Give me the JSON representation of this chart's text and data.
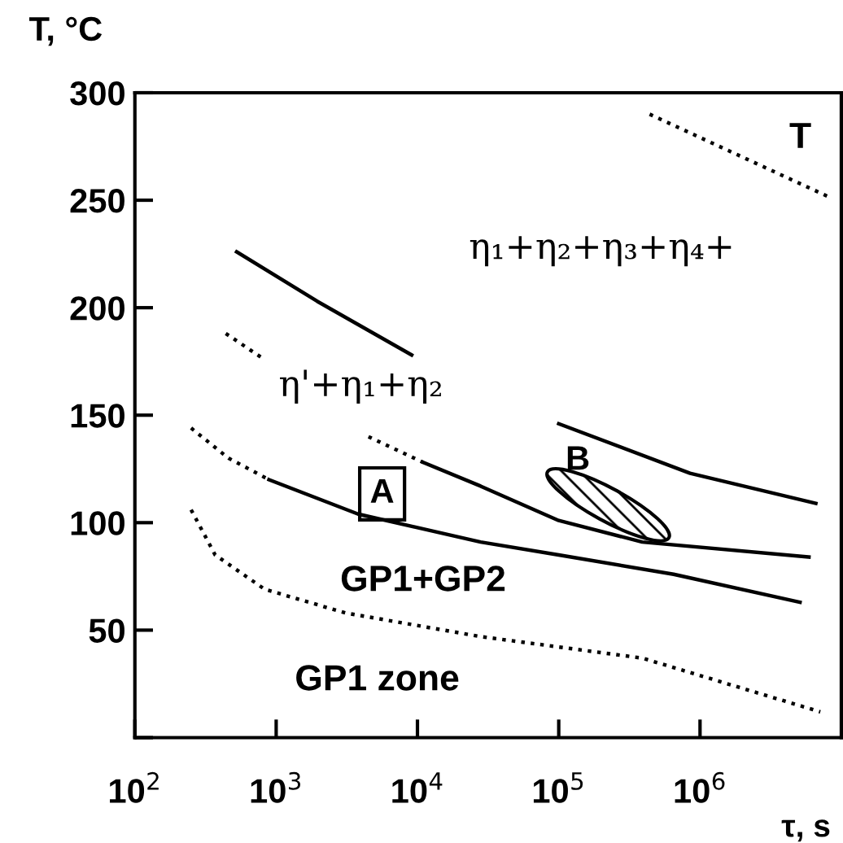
{
  "chart_data": {
    "type": "line",
    "ylabel": "T, °C",
    "xlabel": "τ, s",
    "log": "x",
    "xlim": [
      100,
      10000000
    ],
    "xticks": [
      {
        "value": 100,
        "label": "10$^{2}$"
      },
      {
        "value": 1000,
        "label": "10$^{3}$"
      },
      {
        "value": 10000,
        "label": "10$^{4}$"
      },
      {
        "value": 100000,
        "label": "10$^{5}$"
      },
      {
        "value": 1000000,
        "label": "10$^{6}$"
      }
    ],
    "ylim": [
      0,
      300
    ],
    "yticks": [
      {
        "value": 0,
        "label": null
      },
      50,
      100,
      150,
      200,
      250,
      300
    ],
    "grid": false,
    "legend": false,
    "marker": "none",
    "series": [
      {
        "color": "#000000",
        "line_style": "dotted",
        "x": [
          440000,
          1860000,
          8500000
        ],
        "values": [
          290,
          271,
          251
        ]
      },
      {
        "color": "#000000",
        "line_style": "solid",
        "x": [
          525,
          1950,
          9100,
          23000,
          100000,
          850000,
          6600000
        ],
        "values": [
          226,
          203,
          178,
          null,
          146,
          123,
          109
        ]
      },
      {
        "color": "#000000",
        "line_style": "dotted",
        "x": [
          440,
          780
        ],
        "values": [
          188,
          177
        ]
      },
      {
        "color": "#000000",
        "line_style": "dotted",
        "x": [
          4500,
          11000
        ],
        "values": [
          140,
          128
        ]
      },
      {
        "color": "#000000",
        "line_style": "solid",
        "x": [
          11000,
          28000,
          100000,
          390000,
          5900000
        ],
        "values": [
          128,
          117,
          101,
          91,
          84
        ]
      },
      {
        "color": "#000000",
        "line_style": "dotted",
        "x": [
          250,
          460,
          890
        ],
        "values": [
          144,
          130,
          120
        ]
      },
      {
        "color": "#000000",
        "line_style": "solid",
        "x": [
          890,
          3800,
          28000,
          100000,
          650000,
          5100000
        ],
        "values": [
          120,
          104,
          91,
          85,
          76,
          63
        ]
      },
      {
        "color": "#000000",
        "line_style": "dotted",
        "x": [
          250,
          370,
          830,
          3100,
          28000,
          390000,
          7100000
        ],
        "values": [
          106,
          85,
          69,
          58,
          47,
          37,
          12
        ]
      }
    ],
    "annotations": [
      "T",
      "η₁+η₂+η₃+η₄+",
      "η'+η₁+η₂",
      "A",
      "B",
      "GP1+GP2",
      "GP1 zone"
    ]
  }
}
